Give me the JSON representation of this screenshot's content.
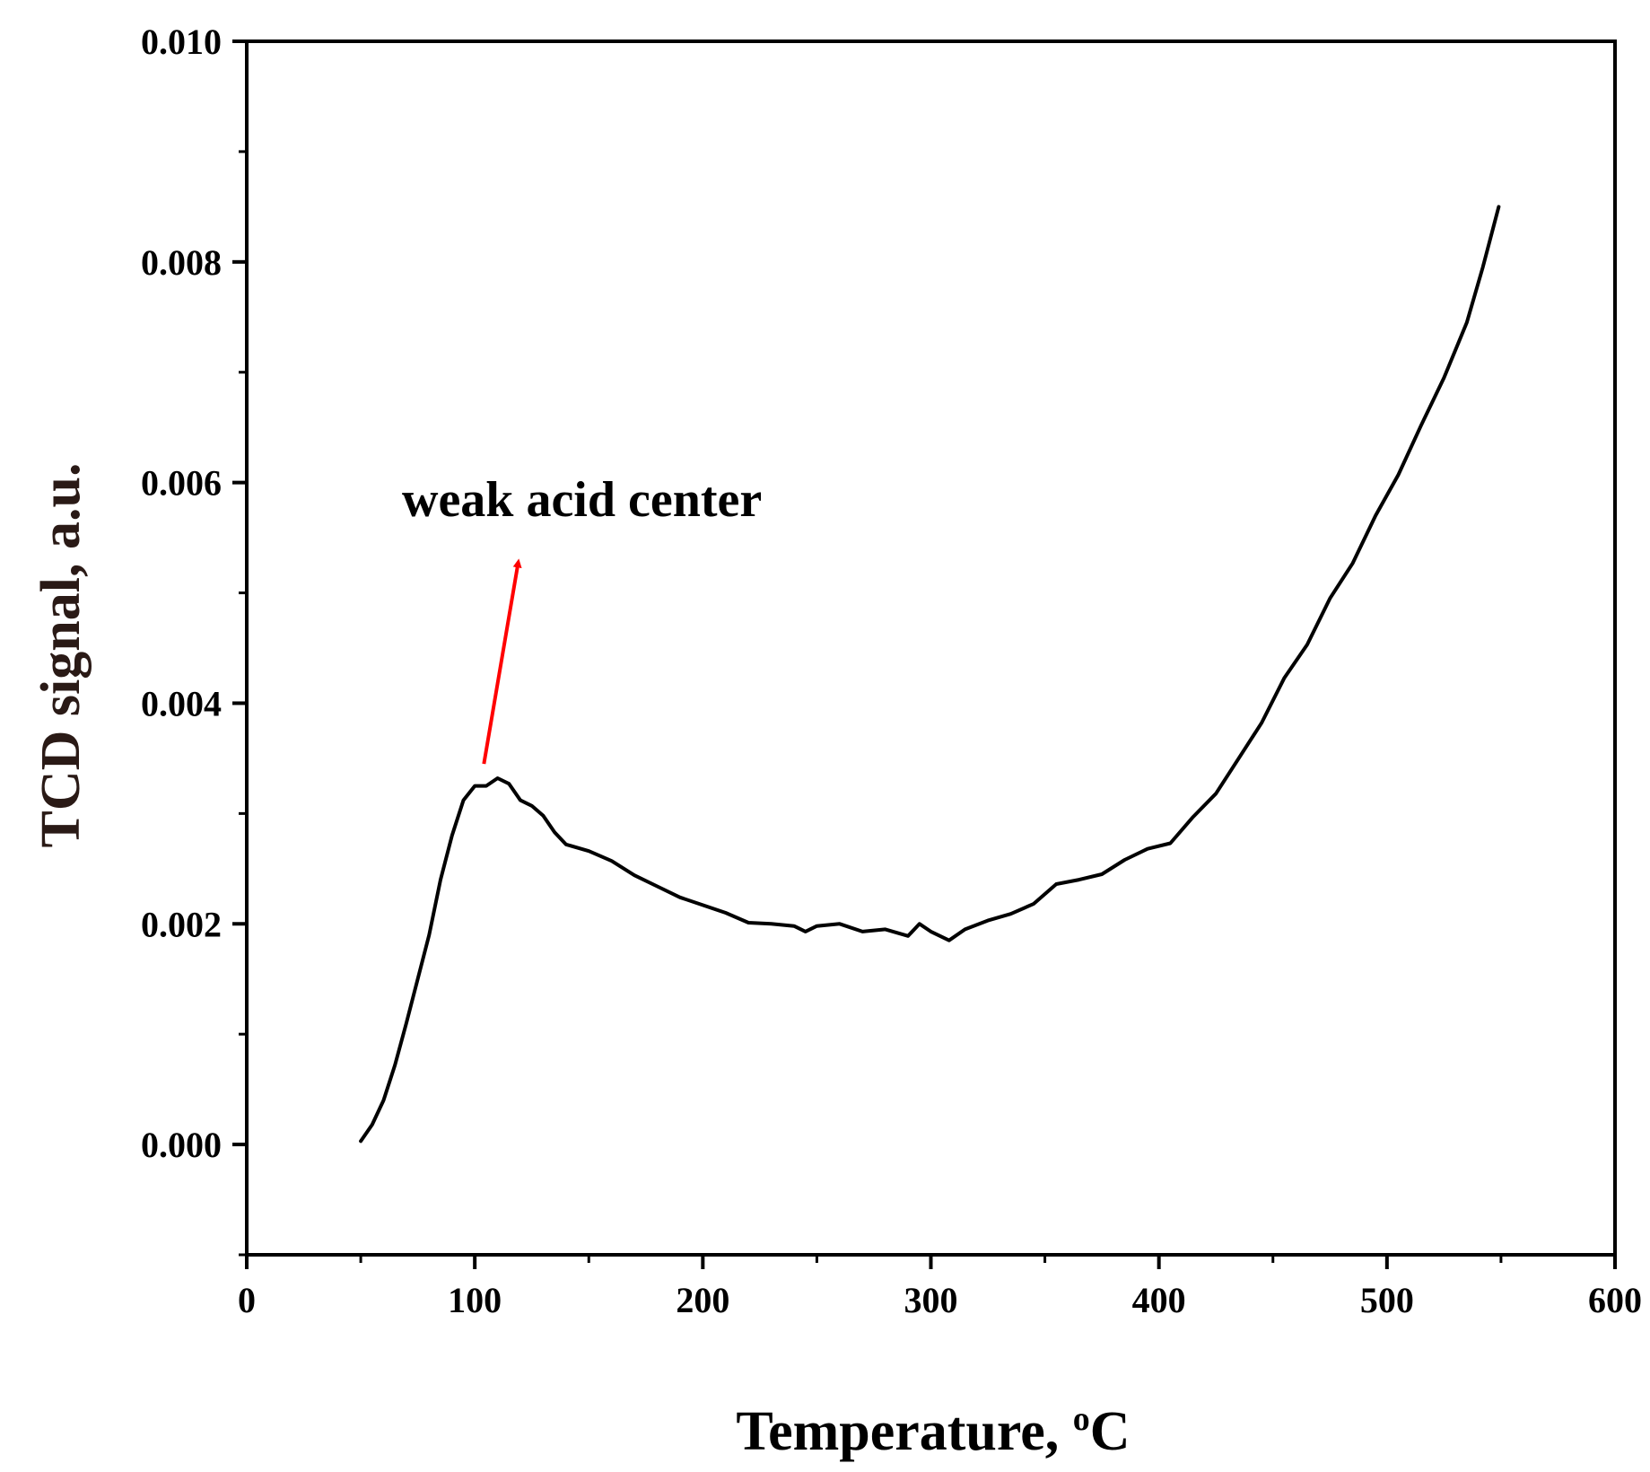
{
  "chart_data": {
    "type": "line",
    "xlabel": "Temperature, ",
    "xlabel_degree": "o",
    "xlabel_unit": "C",
    "ylabel": "TCD signal, a.u.",
    "xlim": [
      0,
      600
    ],
    "ylim": [
      -0.001,
      0.01
    ],
    "x_ticks": [
      "0",
      "100",
      "200",
      "300",
      "400",
      "500",
      "600"
    ],
    "y_ticks": [
      "0.000",
      "0.002",
      "0.004",
      "0.006",
      "0.008",
      "0.010"
    ],
    "grid": false,
    "legend": "none",
    "line_color": "#000000",
    "annotation": {
      "text": "weak acid center",
      "arrow_color": "#ff0000",
      "arrow_from": [
        104,
        0.00345
      ],
      "arrow_to": [
        119,
        0.00527
      ]
    },
    "series": [
      {
        "points": [
          [
            50,
            3e-05
          ],
          [
            55,
            0.00018
          ],
          [
            60,
            0.0004
          ],
          [
            65,
            0.00072
          ],
          [
            70,
            0.0011
          ],
          [
            75,
            0.0015
          ],
          [
            80,
            0.0019
          ],
          [
            85,
            0.0024
          ],
          [
            90,
            0.0028
          ],
          [
            95,
            0.00312
          ],
          [
            100,
            0.00325
          ],
          [
            105,
            0.00325
          ],
          [
            110,
            0.00332
          ],
          [
            115,
            0.00327
          ],
          [
            120,
            0.00312
          ],
          [
            125,
            0.00307
          ],
          [
            130,
            0.00298
          ],
          [
            135,
            0.00283
          ],
          [
            140,
            0.00272
          ],
          [
            150,
            0.00266
          ],
          [
            160,
            0.00257
          ],
          [
            170,
            0.00244
          ],
          [
            180,
            0.00234
          ],
          [
            190,
            0.00224
          ],
          [
            200,
            0.00217
          ],
          [
            210,
            0.0021
          ],
          [
            220,
            0.00201
          ],
          [
            230,
            0.002
          ],
          [
            240,
            0.00198
          ],
          [
            245,
            0.00193
          ],
          [
            250,
            0.00198
          ],
          [
            260,
            0.002
          ],
          [
            270,
            0.00193
          ],
          [
            280,
            0.00195
          ],
          [
            290,
            0.00189
          ],
          [
            295,
            0.002
          ],
          [
            300,
            0.00193
          ],
          [
            308,
            0.00185
          ],
          [
            315,
            0.00195
          ],
          [
            325,
            0.00203
          ],
          [
            335,
            0.00209
          ],
          [
            345,
            0.00218
          ],
          [
            355,
            0.00236
          ],
          [
            365,
            0.0024
          ],
          [
            375,
            0.00245
          ],
          [
            385,
            0.00258
          ],
          [
            395,
            0.00268
          ],
          [
            405,
            0.00273
          ],
          [
            415,
            0.00297
          ],
          [
            425,
            0.00318
          ],
          [
            435,
            0.0035
          ],
          [
            445,
            0.00382
          ],
          [
            455,
            0.00423
          ],
          [
            465,
            0.00453
          ],
          [
            475,
            0.00495
          ],
          [
            485,
            0.00527
          ],
          [
            495,
            0.0057
          ],
          [
            505,
            0.00607
          ],
          [
            515,
            0.00652
          ],
          [
            525,
            0.00695
          ],
          [
            535,
            0.00745
          ],
          [
            542,
            0.00795
          ],
          [
            549,
            0.0085
          ]
        ]
      }
    ]
  }
}
